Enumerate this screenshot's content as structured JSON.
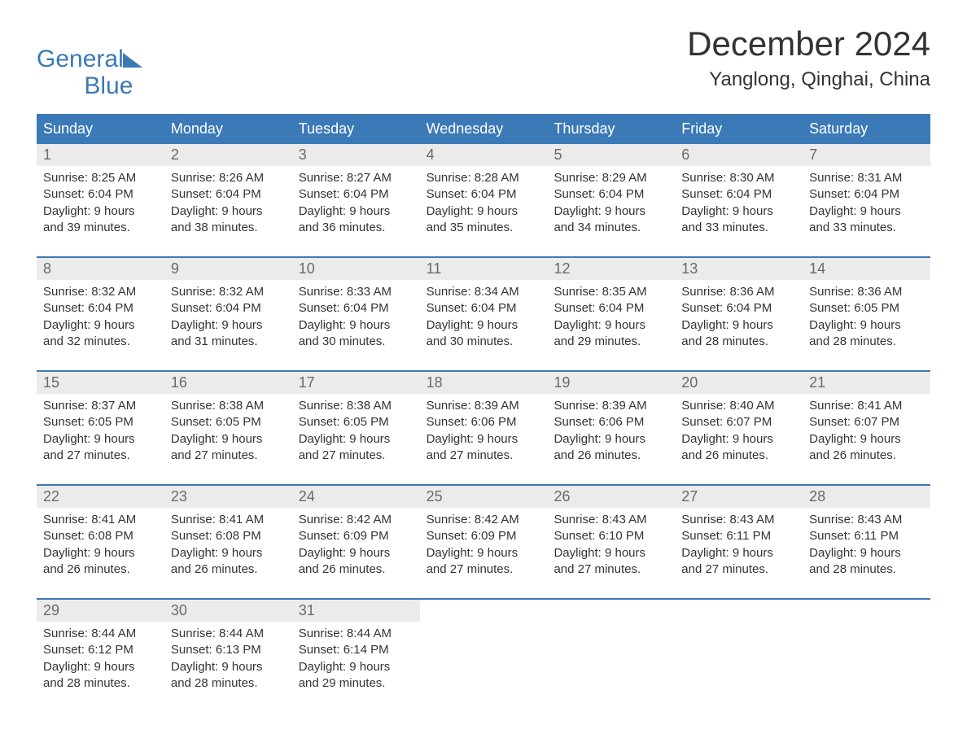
{
  "brand": {
    "word1": "General",
    "word2": "Blue",
    "brand_color": "#3b79b7"
  },
  "title": "December 2024",
  "location": "Yanglong, Qinghai, China",
  "colors": {
    "header_bg": "#3b79b7",
    "header_text": "#ffffff",
    "daynum_bg": "#ebebeb",
    "daynum_text": "#6a6a6a",
    "body_text": "#333333",
    "week_border": "#3b79b7",
    "page_bg": "#ffffff"
  },
  "typography": {
    "title_fontsize": 42,
    "location_fontsize": 24,
    "header_fontsize": 18,
    "daynum_fontsize": 18,
    "body_fontsize": 15,
    "font_family": "Arial"
  },
  "day_headers": [
    "Sunday",
    "Monday",
    "Tuesday",
    "Wednesday",
    "Thursday",
    "Friday",
    "Saturday"
  ],
  "weeks": [
    [
      {
        "n": "1",
        "sunrise": "Sunrise: 8:25 AM",
        "sunset": "Sunset: 6:04 PM",
        "daylight": "Daylight: 9 hours and 39 minutes."
      },
      {
        "n": "2",
        "sunrise": "Sunrise: 8:26 AM",
        "sunset": "Sunset: 6:04 PM",
        "daylight": "Daylight: 9 hours and 38 minutes."
      },
      {
        "n": "3",
        "sunrise": "Sunrise: 8:27 AM",
        "sunset": "Sunset: 6:04 PM",
        "daylight": "Daylight: 9 hours and 36 minutes."
      },
      {
        "n": "4",
        "sunrise": "Sunrise: 8:28 AM",
        "sunset": "Sunset: 6:04 PM",
        "daylight": "Daylight: 9 hours and 35 minutes."
      },
      {
        "n": "5",
        "sunrise": "Sunrise: 8:29 AM",
        "sunset": "Sunset: 6:04 PM",
        "daylight": "Daylight: 9 hours and 34 minutes."
      },
      {
        "n": "6",
        "sunrise": "Sunrise: 8:30 AM",
        "sunset": "Sunset: 6:04 PM",
        "daylight": "Daylight: 9 hours and 33 minutes."
      },
      {
        "n": "7",
        "sunrise": "Sunrise: 8:31 AM",
        "sunset": "Sunset: 6:04 PM",
        "daylight": "Daylight: 9 hours and 33 minutes."
      }
    ],
    [
      {
        "n": "8",
        "sunrise": "Sunrise: 8:32 AM",
        "sunset": "Sunset: 6:04 PM",
        "daylight": "Daylight: 9 hours and 32 minutes."
      },
      {
        "n": "9",
        "sunrise": "Sunrise: 8:32 AM",
        "sunset": "Sunset: 6:04 PM",
        "daylight": "Daylight: 9 hours and 31 minutes."
      },
      {
        "n": "10",
        "sunrise": "Sunrise: 8:33 AM",
        "sunset": "Sunset: 6:04 PM",
        "daylight": "Daylight: 9 hours and 30 minutes."
      },
      {
        "n": "11",
        "sunrise": "Sunrise: 8:34 AM",
        "sunset": "Sunset: 6:04 PM",
        "daylight": "Daylight: 9 hours and 30 minutes."
      },
      {
        "n": "12",
        "sunrise": "Sunrise: 8:35 AM",
        "sunset": "Sunset: 6:04 PM",
        "daylight": "Daylight: 9 hours and 29 minutes."
      },
      {
        "n": "13",
        "sunrise": "Sunrise: 8:36 AM",
        "sunset": "Sunset: 6:04 PM",
        "daylight": "Daylight: 9 hours and 28 minutes."
      },
      {
        "n": "14",
        "sunrise": "Sunrise: 8:36 AM",
        "sunset": "Sunset: 6:05 PM",
        "daylight": "Daylight: 9 hours and 28 minutes."
      }
    ],
    [
      {
        "n": "15",
        "sunrise": "Sunrise: 8:37 AM",
        "sunset": "Sunset: 6:05 PM",
        "daylight": "Daylight: 9 hours and 27 minutes."
      },
      {
        "n": "16",
        "sunrise": "Sunrise: 8:38 AM",
        "sunset": "Sunset: 6:05 PM",
        "daylight": "Daylight: 9 hours and 27 minutes."
      },
      {
        "n": "17",
        "sunrise": "Sunrise: 8:38 AM",
        "sunset": "Sunset: 6:05 PM",
        "daylight": "Daylight: 9 hours and 27 minutes."
      },
      {
        "n": "18",
        "sunrise": "Sunrise: 8:39 AM",
        "sunset": "Sunset: 6:06 PM",
        "daylight": "Daylight: 9 hours and 27 minutes."
      },
      {
        "n": "19",
        "sunrise": "Sunrise: 8:39 AM",
        "sunset": "Sunset: 6:06 PM",
        "daylight": "Daylight: 9 hours and 26 minutes."
      },
      {
        "n": "20",
        "sunrise": "Sunrise: 8:40 AM",
        "sunset": "Sunset: 6:07 PM",
        "daylight": "Daylight: 9 hours and 26 minutes."
      },
      {
        "n": "21",
        "sunrise": "Sunrise: 8:41 AM",
        "sunset": "Sunset: 6:07 PM",
        "daylight": "Daylight: 9 hours and 26 minutes."
      }
    ],
    [
      {
        "n": "22",
        "sunrise": "Sunrise: 8:41 AM",
        "sunset": "Sunset: 6:08 PM",
        "daylight": "Daylight: 9 hours and 26 minutes."
      },
      {
        "n": "23",
        "sunrise": "Sunrise: 8:41 AM",
        "sunset": "Sunset: 6:08 PM",
        "daylight": "Daylight: 9 hours and 26 minutes."
      },
      {
        "n": "24",
        "sunrise": "Sunrise: 8:42 AM",
        "sunset": "Sunset: 6:09 PM",
        "daylight": "Daylight: 9 hours and 26 minutes."
      },
      {
        "n": "25",
        "sunrise": "Sunrise: 8:42 AM",
        "sunset": "Sunset: 6:09 PM",
        "daylight": "Daylight: 9 hours and 27 minutes."
      },
      {
        "n": "26",
        "sunrise": "Sunrise: 8:43 AM",
        "sunset": "Sunset: 6:10 PM",
        "daylight": "Daylight: 9 hours and 27 minutes."
      },
      {
        "n": "27",
        "sunrise": "Sunrise: 8:43 AM",
        "sunset": "Sunset: 6:11 PM",
        "daylight": "Daylight: 9 hours and 27 minutes."
      },
      {
        "n": "28",
        "sunrise": "Sunrise: 8:43 AM",
        "sunset": "Sunset: 6:11 PM",
        "daylight": "Daylight: 9 hours and 28 minutes."
      }
    ],
    [
      {
        "n": "29",
        "sunrise": "Sunrise: 8:44 AM",
        "sunset": "Sunset: 6:12 PM",
        "daylight": "Daylight: 9 hours and 28 minutes."
      },
      {
        "n": "30",
        "sunrise": "Sunrise: 8:44 AM",
        "sunset": "Sunset: 6:13 PM",
        "daylight": "Daylight: 9 hours and 28 minutes."
      },
      {
        "n": "31",
        "sunrise": "Sunrise: 8:44 AM",
        "sunset": "Sunset: 6:14 PM",
        "daylight": "Daylight: 9 hours and 29 minutes."
      },
      {
        "empty": true
      },
      {
        "empty": true
      },
      {
        "empty": true
      },
      {
        "empty": true
      }
    ]
  ]
}
